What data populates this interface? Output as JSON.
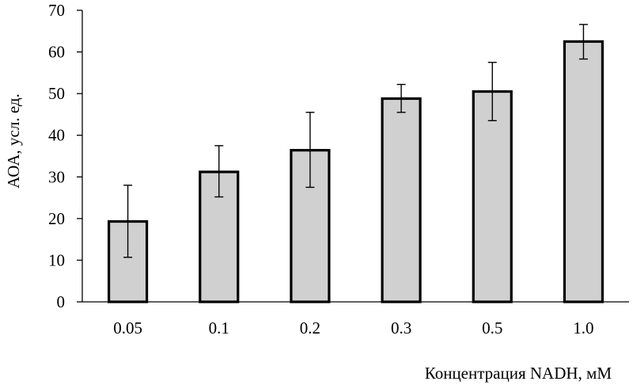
{
  "chart_data": {
    "type": "bar",
    "title": "",
    "xlabel": "Концентрация NADH, мМ",
    "ylabel": "АОА, усл. ед.",
    "categories": [
      "0.05",
      "0.1",
      "0.2",
      "0.3",
      "0.5",
      "1.0"
    ],
    "values": [
      19.3,
      31.2,
      36.4,
      48.8,
      50.5,
      62.5
    ],
    "errors_upper": [
      28.0,
      37.5,
      45.5,
      52.2,
      57.5,
      66.6
    ],
    "errors_lower": [
      10.7,
      25.2,
      27.5,
      45.5,
      43.5,
      58.3
    ],
    "ylim": [
      0,
      70
    ],
    "yticks": [
      "0",
      "10",
      "20",
      "30",
      "40",
      "50",
      "60",
      "70"
    ],
    "grid": false,
    "legend": "none",
    "colors": {
      "bar_fill": "#d0d0d0",
      "bar_stroke": "#000000",
      "axis": "#000000"
    }
  }
}
